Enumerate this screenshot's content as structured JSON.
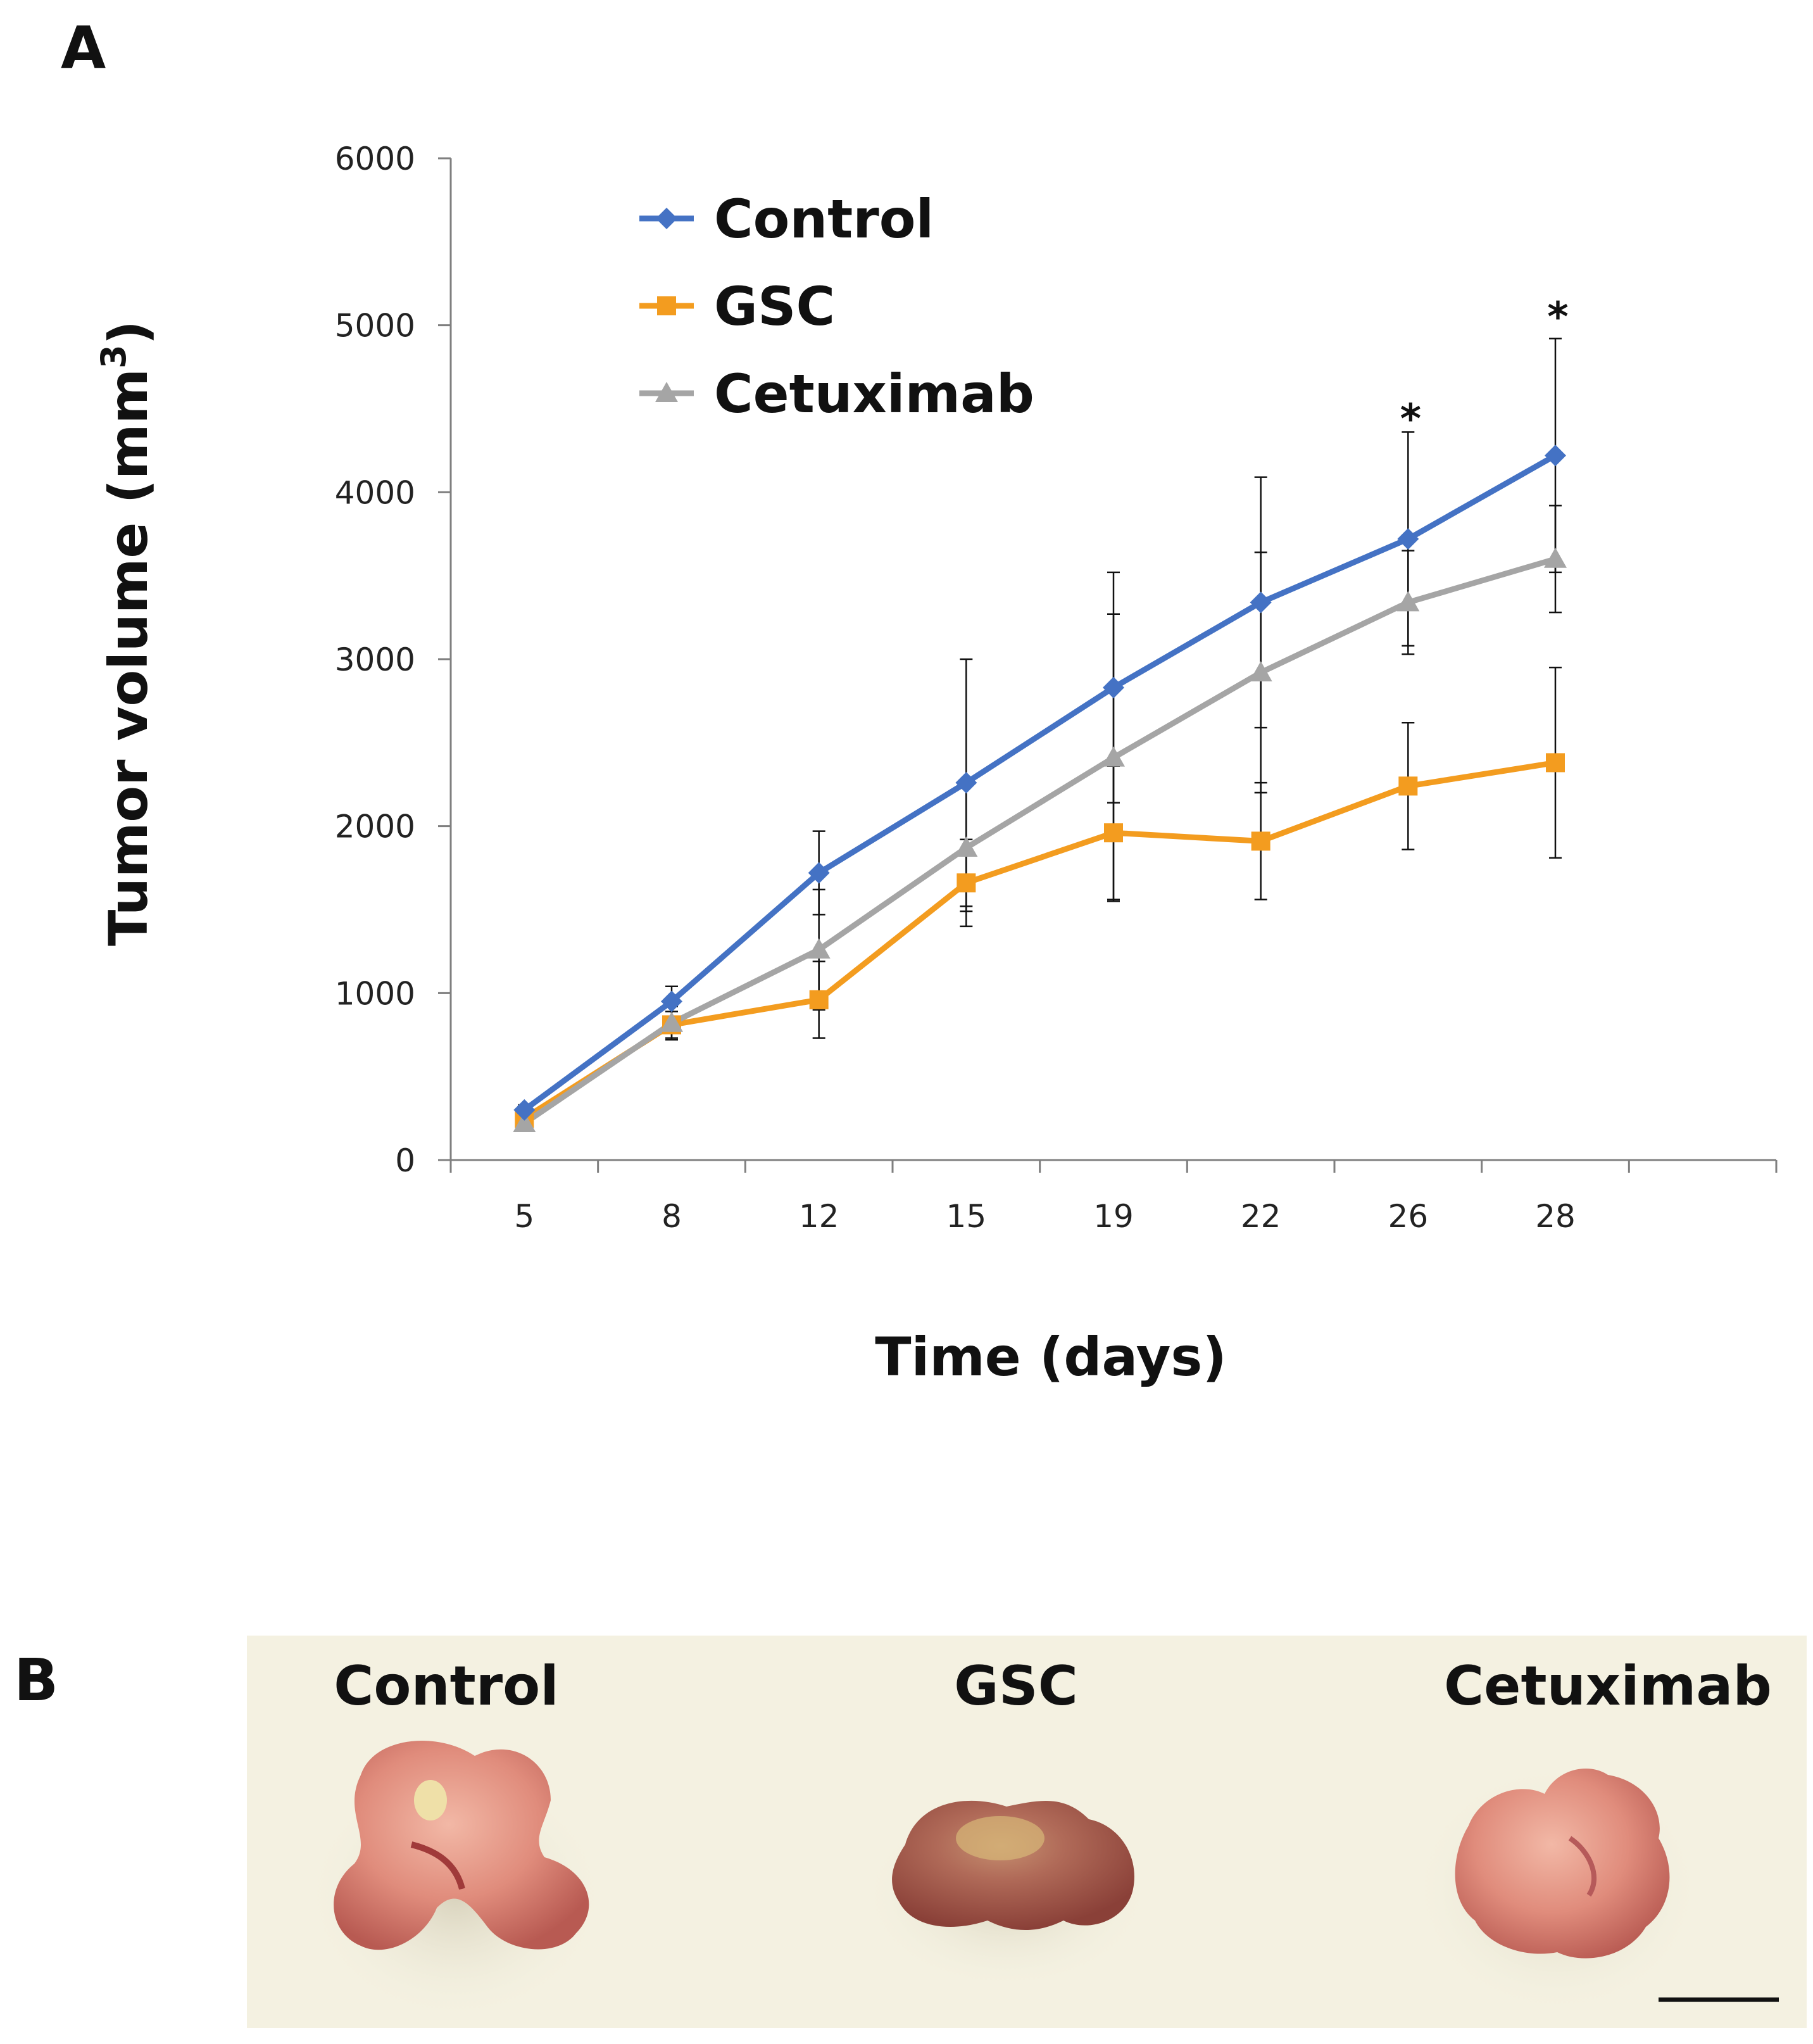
{
  "panel_a": {
    "label": "A"
  },
  "panel_b": {
    "label": "B",
    "tumor_labels": [
      "Control",
      "GSC",
      "Cetuximab"
    ]
  },
  "chart_data": {
    "type": "line",
    "title": "",
    "xlabel": "Time (days)",
    "ylabel": "Tumor volume (mm",
    "ylabel_superscript": "3",
    "ylabel_suffix": ")",
    "categories": [
      "5",
      "8",
      "12",
      "15",
      "19",
      "22",
      "26",
      "28"
    ],
    "ylim": [
      0,
      6000
    ],
    "yticks": [
      "0",
      "1000",
      "2000",
      "3000",
      "4000",
      "5000",
      "6000"
    ],
    "grid": false,
    "legend_position": "top-center",
    "series": [
      {
        "name": "Control",
        "color": "#4472c4",
        "marker": "diamond",
        "values": [
          300,
          950,
          1720,
          2260,
          2830,
          3340,
          3720,
          4220
        ],
        "errors": [
          30,
          90,
          250,
          740,
          690,
          750,
          640,
          700
        ]
      },
      {
        "name": "GSC",
        "color": "#f39c1f",
        "marker": "square",
        "values": [
          250,
          810,
          960,
          1660,
          1960,
          1910,
          2240,
          2380
        ],
        "errors": [
          30,
          80,
          230,
          260,
          400,
          350,
          380,
          570
        ]
      },
      {
        "name": "Cetuximab",
        "color": "#a5a5a5",
        "marker": "triangle",
        "values": [
          220,
          820,
          1260,
          1870,
          2410,
          2920,
          3340,
          3600
        ],
        "errors": [
          30,
          100,
          360,
          380,
          860,
          720,
          310,
          320
        ]
      }
    ],
    "annotations": [
      {
        "text": "*",
        "category": "26",
        "value": 4470
      },
      {
        "text": "*",
        "category": "28",
        "value": 5080
      }
    ]
  }
}
